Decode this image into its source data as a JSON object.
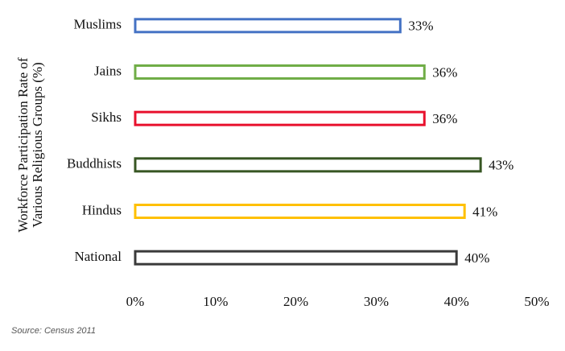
{
  "chart_data": {
    "type": "hbar",
    "y_label": [
      "Workforce Participation Rate of",
      "Various Religious Groups (%)"
    ],
    "categories": [
      "Muslims",
      "Jains",
      "Sikhs",
      "Buddhists",
      "Hindus",
      "National"
    ],
    "values": [
      33,
      36,
      36,
      43,
      41,
      40
    ],
    "value_labels": [
      "33%",
      "36%",
      "36%",
      "43%",
      "41%",
      "40%"
    ],
    "colors": [
      "#4472c4",
      "#70ad47",
      "#e8112d",
      "#375623",
      "#ffc000",
      "#3a3a3a"
    ],
    "xlim": [
      0,
      50
    ],
    "xticks": [
      {
        "value": 0,
        "label": "0%"
      },
      {
        "value": 10,
        "label": "10%"
      },
      {
        "value": 20,
        "label": "20%"
      },
      {
        "value": 30,
        "label": "30%"
      },
      {
        "value": 40,
        "label": "40%"
      },
      {
        "value": 50,
        "label": "50%"
      }
    ],
    "source": "Source: Census 2011"
  }
}
